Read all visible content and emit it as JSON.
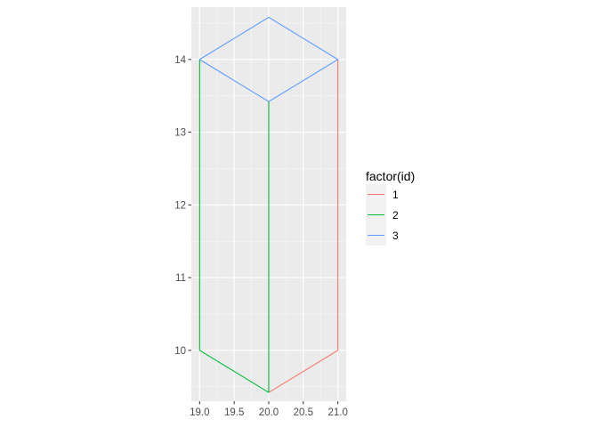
{
  "chart_data": {
    "type": "line",
    "title": "",
    "xlabel": "",
    "ylabel": "",
    "xlim": [
      18.88,
      21.12
    ],
    "ylim": [
      9.3,
      14.72
    ],
    "x_ticks": [
      "19.0",
      "19.5",
      "20.0",
      "20.5",
      "21.0"
    ],
    "y_ticks": [
      "10",
      "11",
      "12",
      "13",
      "14"
    ],
    "x_tick_values": [
      19.0,
      19.5,
      20.0,
      20.5,
      21.0
    ],
    "y_tick_values": [
      10,
      11,
      12,
      13,
      14
    ],
    "grid": true,
    "panel_background": "#ebebeb",
    "legend": {
      "title": "factor(id)",
      "placement": "right",
      "entries": [
        "1",
        "2",
        "3"
      ]
    },
    "series": [
      {
        "name": "1",
        "color": "#f8766d",
        "x": [
          20.0,
          21.0,
          21.0
        ],
        "y": [
          9.42,
          10.0,
          14.0
        ]
      },
      {
        "name": "2",
        "color": "#00ba38",
        "x": [
          20.0,
          19.0,
          19.0
        ],
        "y": [
          9.42,
          10.0,
          14.0
        ]
      },
      {
        "name": "3",
        "color": "#619cff",
        "x": [
          19.0,
          20.0,
          21.0,
          20.0,
          19.0
        ],
        "y": [
          14.0,
          14.58,
          14.0,
          13.42,
          14.0
        ]
      },
      {
        "name": "2",
        "color": "#00ba38",
        "x": [
          20.0,
          20.0
        ],
        "y": [
          9.42,
          13.42
        ]
      }
    ]
  }
}
